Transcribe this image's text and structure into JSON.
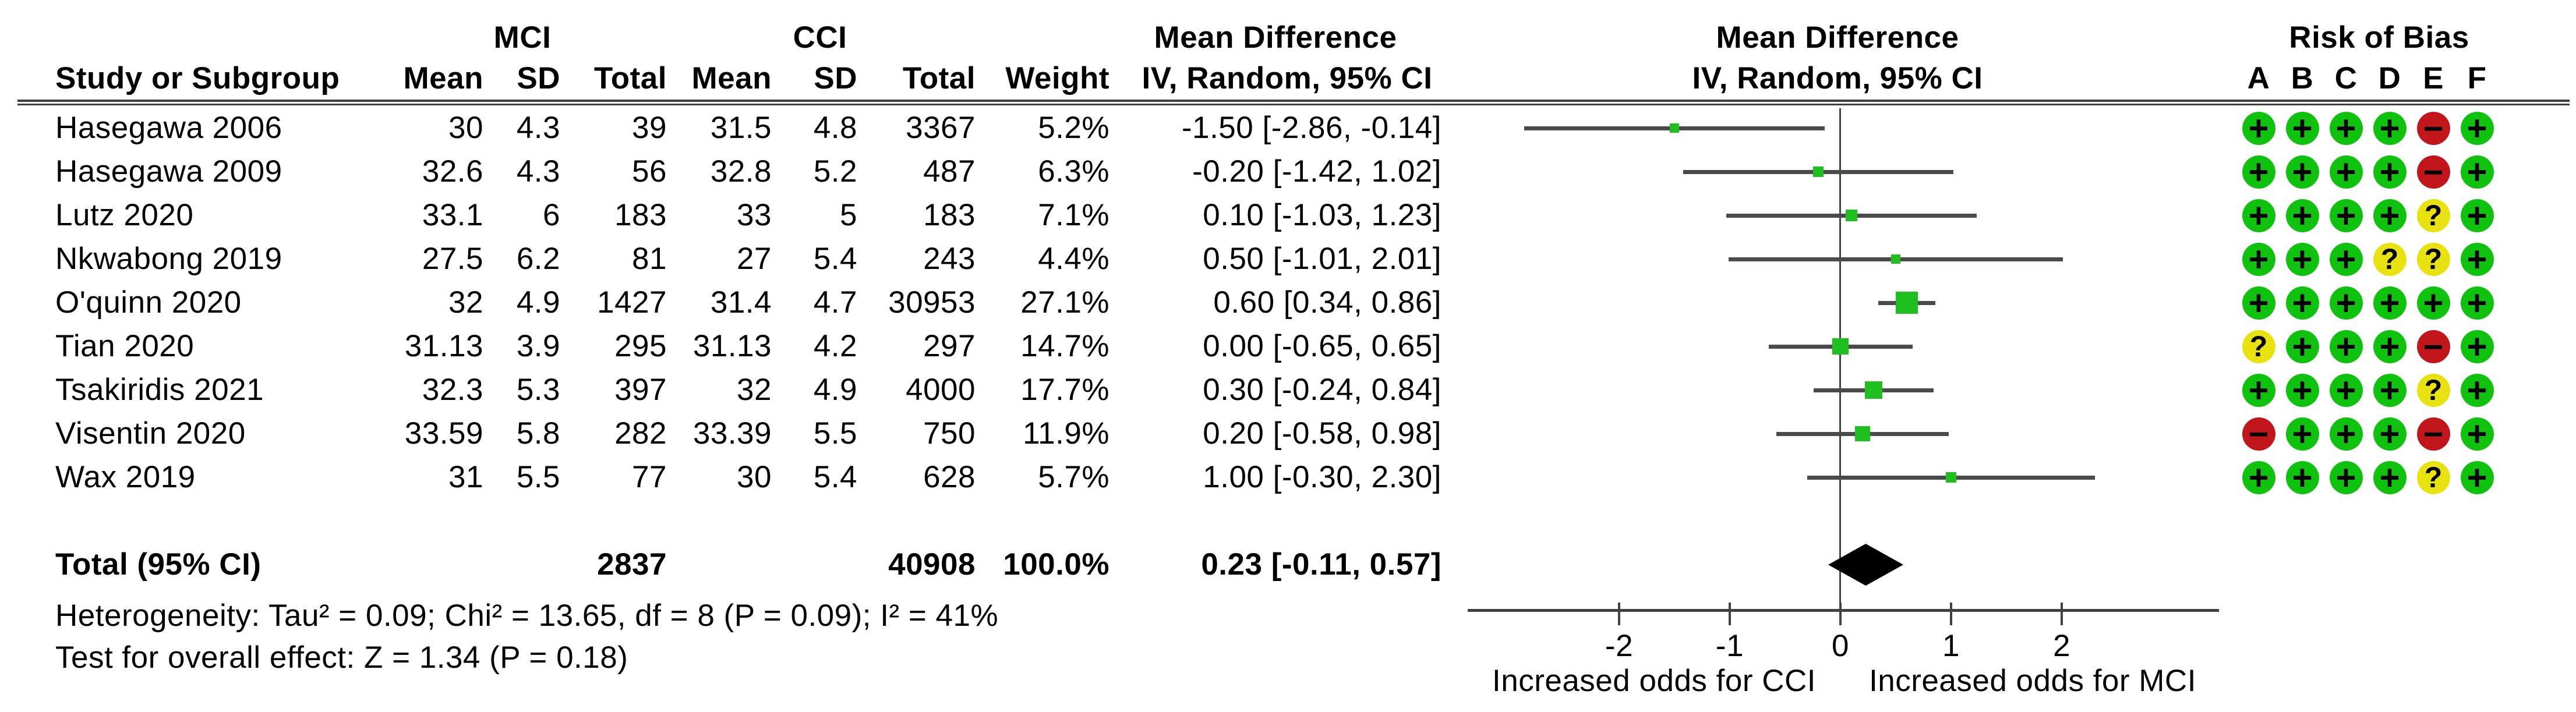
{
  "figure": {
    "headers": {
      "study": "Study or Subgroup",
      "group_mci": "MCI",
      "group_cci": "CCI",
      "mean": "Mean",
      "sd": "SD",
      "total": "Total",
      "weight": "Weight",
      "mean_difference": "Mean Difference",
      "iv_random": "IV, Random, 95% CI",
      "risk_of_bias": "Risk of Bias",
      "rob_columns": [
        "A",
        "B",
        "C",
        "D",
        "E",
        "F"
      ]
    },
    "studies": [
      {
        "name": "Hasegawa 2006",
        "mci_mean": "30",
        "mci_sd": "4.3",
        "mci_total": "39",
        "cci_mean": "31.5",
        "cci_sd": "4.8",
        "cci_total": "3367",
        "weight": "5.2%",
        "ci_text": "-1.50 [-2.86, -0.14]",
        "md": -1.5,
        "lo": -2.86,
        "hi": -0.14,
        "weight_pct": 5.2,
        "rob": [
          "+",
          "+",
          "+",
          "+",
          "-",
          "+"
        ]
      },
      {
        "name": "Hasegawa 2009",
        "mci_mean": "32.6",
        "mci_sd": "4.3",
        "mci_total": "56",
        "cci_mean": "32.8",
        "cci_sd": "5.2",
        "cci_total": "487",
        "weight": "6.3%",
        "ci_text": "-0.20 [-1.42, 1.02]",
        "md": -0.2,
        "lo": -1.42,
        "hi": 1.02,
        "weight_pct": 6.3,
        "rob": [
          "+",
          "+",
          "+",
          "+",
          "-",
          "+"
        ]
      },
      {
        "name": "Lutz 2020",
        "mci_mean": "33.1",
        "mci_sd": "6",
        "mci_total": "183",
        "cci_mean": "33",
        "cci_sd": "5",
        "cci_total": "183",
        "weight": "7.1%",
        "ci_text": "0.10 [-1.03, 1.23]",
        "md": 0.1,
        "lo": -1.03,
        "hi": 1.23,
        "weight_pct": 7.1,
        "rob": [
          "+",
          "+",
          "+",
          "+",
          "?",
          "+"
        ]
      },
      {
        "name": "Nkwabong 2019",
        "mci_mean": "27.5",
        "mci_sd": "6.2",
        "mci_total": "81",
        "cci_mean": "27",
        "cci_sd": "5.4",
        "cci_total": "243",
        "weight": "4.4%",
        "ci_text": "0.50 [-1.01, 2.01]",
        "md": 0.5,
        "lo": -1.01,
        "hi": 2.01,
        "weight_pct": 4.4,
        "rob": [
          "+",
          "+",
          "+",
          "?",
          "?",
          "+"
        ]
      },
      {
        "name": "O'quinn 2020",
        "mci_mean": "32",
        "mci_sd": "4.9",
        "mci_total": "1427",
        "cci_mean": "31.4",
        "cci_sd": "4.7",
        "cci_total": "30953",
        "weight": "27.1%",
        "ci_text": "0.60 [0.34, 0.86]",
        "md": 0.6,
        "lo": 0.34,
        "hi": 0.86,
        "weight_pct": 27.1,
        "rob": [
          "+",
          "+",
          "+",
          "+",
          "+",
          "+"
        ]
      },
      {
        "name": "Tian 2020",
        "mci_mean": "31.13",
        "mci_sd": "3.9",
        "mci_total": "295",
        "cci_mean": "31.13",
        "cci_sd": "4.2",
        "cci_total": "297",
        "weight": "14.7%",
        "ci_text": "0.00 [-0.65, 0.65]",
        "md": 0.0,
        "lo": -0.65,
        "hi": 0.65,
        "weight_pct": 14.7,
        "rob": [
          "?",
          "+",
          "+",
          "+",
          "-",
          "+"
        ]
      },
      {
        "name": "Tsakiridis 2021",
        "mci_mean": "32.3",
        "mci_sd": "5.3",
        "mci_total": "397",
        "cci_mean": "32",
        "cci_sd": "4.9",
        "cci_total": "4000",
        "weight": "17.7%",
        "ci_text": "0.30 [-0.24, 0.84]",
        "md": 0.3,
        "lo": -0.24,
        "hi": 0.84,
        "weight_pct": 17.7,
        "rob": [
          "+",
          "+",
          "+",
          "+",
          "?",
          "+"
        ]
      },
      {
        "name": "Visentin 2020",
        "mci_mean": "33.59",
        "mci_sd": "5.8",
        "mci_total": "282",
        "cci_mean": "33.39",
        "cci_sd": "5.5",
        "cci_total": "750",
        "weight": "11.9%",
        "ci_text": "0.20 [-0.58, 0.98]",
        "md": 0.2,
        "lo": -0.58,
        "hi": 0.98,
        "weight_pct": 11.9,
        "rob": [
          "-",
          "+",
          "+",
          "+",
          "-",
          "+"
        ]
      },
      {
        "name": "Wax 2019",
        "mci_mean": "31",
        "mci_sd": "5.5",
        "mci_total": "77",
        "cci_mean": "30",
        "cci_sd": "5.4",
        "cci_total": "628",
        "weight": "5.7%",
        "ci_text": "1.00 [-0.30, 2.30]",
        "md": 1.0,
        "lo": -0.3,
        "hi": 2.3,
        "weight_pct": 5.7,
        "rob": [
          "+",
          "+",
          "+",
          "+",
          "?",
          "+"
        ]
      }
    ],
    "total_row": {
      "label": "Total (95% CI)",
      "mci_total": "2837",
      "cci_total": "40908",
      "weight": "100.0%",
      "ci_text": "0.23 [-0.11, 0.57]",
      "md": 0.23,
      "lo": -0.11,
      "hi": 0.57
    },
    "footnotes": {
      "heterogeneity": "Heterogeneity: Tau² = 0.09; Chi² = 13.65, df = 8 (P = 0.09); I² = 41%",
      "overall_effect": "Test for overall effect: Z = 1.34 (P = 0.18)"
    },
    "axis": {
      "ticks": [
        {
          "label": "-2",
          "value": -2
        },
        {
          "label": "-1",
          "value": -1
        },
        {
          "label": "0",
          "value": 0
        },
        {
          "label": "1",
          "value": 1
        },
        {
          "label": "2",
          "value": 2
        }
      ],
      "left_label": "Increased odds for CCI",
      "right_label": "Increased odds for MCI"
    },
    "rob_symbols": {
      "+": "+",
      "-": "−",
      "?": "?"
    },
    "colors": {
      "square": "#1FBF1F",
      "ci_line": "#4A4A4A",
      "diamond": "#000000",
      "rob_plus": "#0EC20E",
      "rob_minus": "#C1161C",
      "rob_question": "#E8E211",
      "text": "#000000"
    }
  },
  "chart_data": {
    "type": "scatter",
    "subtype": "forest-plot",
    "title": "Mean Difference IV, Random, 95% CI",
    "xlabel": "Mean Difference",
    "xlim": [
      -3.4,
      3.4
    ],
    "xticks": [
      -2,
      -1,
      0,
      1,
      2
    ],
    "x_annotation_left": "Increased odds for CCI",
    "x_annotation_right": "Increased odds for MCI",
    "grid": false,
    "legend_position": "none",
    "studies": [
      {
        "name": "Hasegawa 2006",
        "md": -1.5,
        "ci": [
          -2.86,
          -0.14
        ],
        "weight_pct": 5.2
      },
      {
        "name": "Hasegawa 2009",
        "md": -0.2,
        "ci": [
          -1.42,
          1.02
        ],
        "weight_pct": 6.3
      },
      {
        "name": "Lutz 2020",
        "md": 0.1,
        "ci": [
          -1.03,
          1.23
        ],
        "weight_pct": 7.1
      },
      {
        "name": "Nkwabong 2019",
        "md": 0.5,
        "ci": [
          -1.01,
          2.01
        ],
        "weight_pct": 4.4
      },
      {
        "name": "O'quinn 2020",
        "md": 0.6,
        "ci": [
          0.34,
          0.86
        ],
        "weight_pct": 27.1
      },
      {
        "name": "Tian 2020",
        "md": 0.0,
        "ci": [
          -0.65,
          0.65
        ],
        "weight_pct": 14.7
      },
      {
        "name": "Tsakiridis 2021",
        "md": 0.3,
        "ci": [
          -0.24,
          0.84
        ],
        "weight_pct": 17.7
      },
      {
        "name": "Visentin 2020",
        "md": 0.2,
        "ci": [
          -0.58,
          0.98
        ],
        "weight_pct": 11.9
      },
      {
        "name": "Wax 2019",
        "md": 1.0,
        "ci": [
          -0.3,
          2.3
        ],
        "weight_pct": 5.7
      }
    ],
    "total": {
      "name": "Total (95% CI)",
      "md": 0.23,
      "ci": [
        -0.11,
        0.57
      ],
      "mci_n": 2837,
      "cci_n": 40908
    }
  }
}
